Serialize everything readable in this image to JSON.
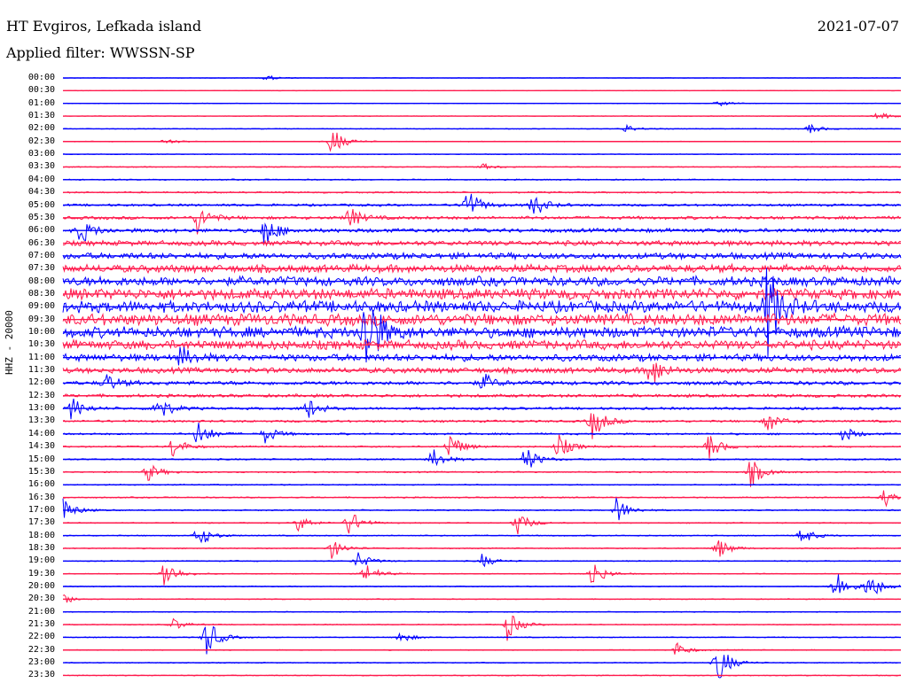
{
  "header": {
    "station": "HT Evgiros, Lefkada island",
    "filter": "Applied filter: WWSSN-SP",
    "date": "2021-07-07"
  },
  "chart_data": {
    "type": "line",
    "title": "HT Evgiros, Lefkada island",
    "subtitle": "Applied filter: WWSSN-SP",
    "ylabel": "HHZ - 20000",
    "xlabel": "",
    "date": "2021-07-07",
    "grid": false,
    "row_labels": [
      "00:00",
      "00:30",
      "01:00",
      "01:30",
      "02:00",
      "02:30",
      "03:00",
      "03:30",
      "04:00",
      "04:30",
      "05:00",
      "05:30",
      "06:00",
      "06:30",
      "07:00",
      "07:30",
      "08:00",
      "08:30",
      "09:00",
      "09:30",
      "10:00",
      "10:30",
      "11:00",
      "11:30",
      "12:00",
      "12:30",
      "13:00",
      "13:30",
      "14:00",
      "14:30",
      "15:00",
      "15:30",
      "16:00",
      "16:30",
      "17:00",
      "17:30",
      "18:00",
      "18:30",
      "19:00",
      "19:30",
      "20:00",
      "20:30",
      "21:00",
      "21:30",
      "22:00",
      "22:30",
      "23:00",
      "23:30"
    ],
    "trace_colors": [
      "#0000ff",
      "#ff1a4d"
    ],
    "noise_level": [
      0.3,
      0.3,
      0.4,
      0.4,
      0.5,
      0.5,
      0.5,
      0.6,
      0.8,
      1.0,
      1.5,
      2.0,
      2.5,
      3.2,
      4.0,
      5.0,
      6.0,
      7.0,
      7.5,
      7.5,
      7.0,
      6.0,
      4.5,
      3.5,
      2.5,
      2.0,
      1.6,
      1.4,
      1.2,
      1.0,
      1.0,
      0.9,
      0.8,
      0.8,
      0.8,
      0.7,
      0.7,
      0.7,
      0.7,
      0.6,
      0.6,
      0.6,
      0.6,
      0.6,
      0.6,
      0.6,
      0.6,
      0.6
    ],
    "events": [
      {
        "row": 0,
        "x": 0.24,
        "amp": 4
      },
      {
        "row": 2,
        "x": 0.78,
        "amp": 4
      },
      {
        "row": 3,
        "x": 0.97,
        "amp": 6
      },
      {
        "row": 4,
        "x": 0.67,
        "amp": 5
      },
      {
        "row": 4,
        "x": 0.89,
        "amp": 6
      },
      {
        "row": 5,
        "x": 0.32,
        "amp": 18
      },
      {
        "row": 5,
        "x": 0.12,
        "amp": 4
      },
      {
        "row": 7,
        "x": 0.5,
        "amp": 4
      },
      {
        "row": 10,
        "x": 0.48,
        "amp": 24
      },
      {
        "row": 10,
        "x": 0.56,
        "amp": 16
      },
      {
        "row": 11,
        "x": 0.16,
        "amp": 18
      },
      {
        "row": 11,
        "x": 0.34,
        "amp": 14
      },
      {
        "row": 12,
        "x": 0.02,
        "amp": 16
      },
      {
        "row": 12,
        "x": 0.24,
        "amp": 20
      },
      {
        "row": 18,
        "x": 0.84,
        "amp": 60
      },
      {
        "row": 20,
        "x": 0.36,
        "amp": 70
      },
      {
        "row": 22,
        "x": 0.14,
        "amp": 12
      },
      {
        "row": 23,
        "x": 0.7,
        "amp": 22
      },
      {
        "row": 24,
        "x": 0.05,
        "amp": 12
      },
      {
        "row": 24,
        "x": 0.5,
        "amp": 12
      },
      {
        "row": 26,
        "x": 0.01,
        "amp": 14
      },
      {
        "row": 26,
        "x": 0.11,
        "amp": 20
      },
      {
        "row": 26,
        "x": 0.29,
        "amp": 14
      },
      {
        "row": 27,
        "x": 0.63,
        "amp": 24
      },
      {
        "row": 27,
        "x": 0.84,
        "amp": 14
      },
      {
        "row": 28,
        "x": 0.16,
        "amp": 18
      },
      {
        "row": 28,
        "x": 0.24,
        "amp": 12
      },
      {
        "row": 28,
        "x": 0.93,
        "amp": 10
      },
      {
        "row": 29,
        "x": 0.13,
        "amp": 14
      },
      {
        "row": 29,
        "x": 0.46,
        "amp": 18
      },
      {
        "row": 29,
        "x": 0.59,
        "amp": 16
      },
      {
        "row": 29,
        "x": 0.77,
        "amp": 16
      },
      {
        "row": 30,
        "x": 0.44,
        "amp": 14
      },
      {
        "row": 30,
        "x": 0.55,
        "amp": 18
      },
      {
        "row": 31,
        "x": 0.1,
        "amp": 12
      },
      {
        "row": 31,
        "x": 0.82,
        "amp": 18
      },
      {
        "row": 33,
        "x": 0.98,
        "amp": 12
      },
      {
        "row": 34,
        "x": 0.0,
        "amp": 14
      },
      {
        "row": 34,
        "x": 0.66,
        "amp": 16
      },
      {
        "row": 35,
        "x": 0.28,
        "amp": 10
      },
      {
        "row": 35,
        "x": 0.34,
        "amp": 18
      },
      {
        "row": 35,
        "x": 0.54,
        "amp": 16
      },
      {
        "row": 36,
        "x": 0.16,
        "amp": 16
      },
      {
        "row": 36,
        "x": 0.88,
        "amp": 12
      },
      {
        "row": 37,
        "x": 0.32,
        "amp": 12
      },
      {
        "row": 37,
        "x": 0.78,
        "amp": 14
      },
      {
        "row": 38,
        "x": 0.35,
        "amp": 12
      },
      {
        "row": 38,
        "x": 0.5,
        "amp": 8
      },
      {
        "row": 39,
        "x": 0.12,
        "amp": 20
      },
      {
        "row": 39,
        "x": 0.36,
        "amp": 14
      },
      {
        "row": 39,
        "x": 0.63,
        "amp": 18
      },
      {
        "row": 40,
        "x": 0.96,
        "amp": 20
      },
      {
        "row": 40,
        "x": 0.92,
        "amp": 24
      },
      {
        "row": 41,
        "x": 0.0,
        "amp": 6
      },
      {
        "row": 43,
        "x": 0.13,
        "amp": 8
      },
      {
        "row": 43,
        "x": 0.53,
        "amp": 18
      },
      {
        "row": 44,
        "x": 0.17,
        "amp": 26
      },
      {
        "row": 44,
        "x": 0.4,
        "amp": 8
      },
      {
        "row": 45,
        "x": 0.73,
        "amp": 10
      },
      {
        "row": 46,
        "x": 0.78,
        "amp": 28
      }
    ]
  }
}
